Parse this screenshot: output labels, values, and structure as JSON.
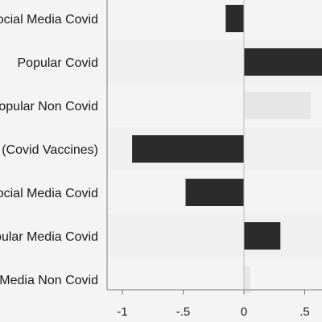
{
  "chart_data": {
    "type": "bar",
    "orientation": "horizontal",
    "categories": [
      "Social Media Covid",
      "Popular Covid",
      "Popular Non Covid",
      "(Covid Vaccines)",
      "Social Media Covid",
      "Popular Media Covid",
      "Social Media Non Covid"
    ],
    "values": [
      -0.15,
      0.65,
      0.55,
      -0.92,
      -0.48,
      0.3,
      0.05
    ],
    "xticks": [
      {
        "value": -1,
        "label": "-1"
      },
      {
        "value": -0.5,
        "label": "-.5"
      },
      {
        "value": 0,
        "label": "0"
      },
      {
        "value": 0.5,
        "label": ".5"
      }
    ],
    "xlim": [
      -1.1,
      0.65
    ],
    "title": "",
    "xlabel": "",
    "ylabel": "",
    "grid": false,
    "colors": {
      "bar": "#2b2b2b",
      "bar_light": "#e6e6e6",
      "axis": "#7a7a7a",
      "background": "#f4f4f4"
    }
  }
}
